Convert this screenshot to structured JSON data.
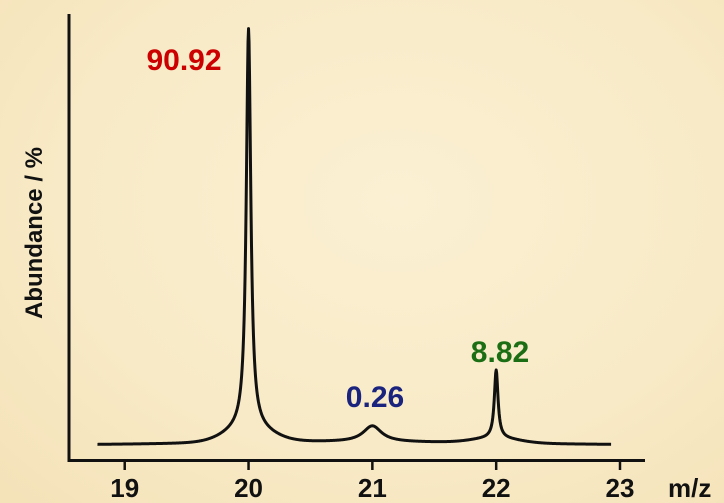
{
  "chart_data": {
    "type": "line",
    "title": "",
    "xlabel": "m/z",
    "ylabel": "Abundance / %",
    "xlim": [
      18.55,
      23.0
    ],
    "x_ticks": [
      "19",
      "20",
      "21",
      "22",
      "23"
    ],
    "peaks": [
      {
        "x": 20.0,
        "label": "90.92",
        "color": "#cc0000"
      },
      {
        "x": 21.0,
        "label": "0.26",
        "color": "#1a237e"
      },
      {
        "x": 22.0,
        "label": "8.82",
        "color": "#1b6e13"
      }
    ],
    "grid": false
  }
}
